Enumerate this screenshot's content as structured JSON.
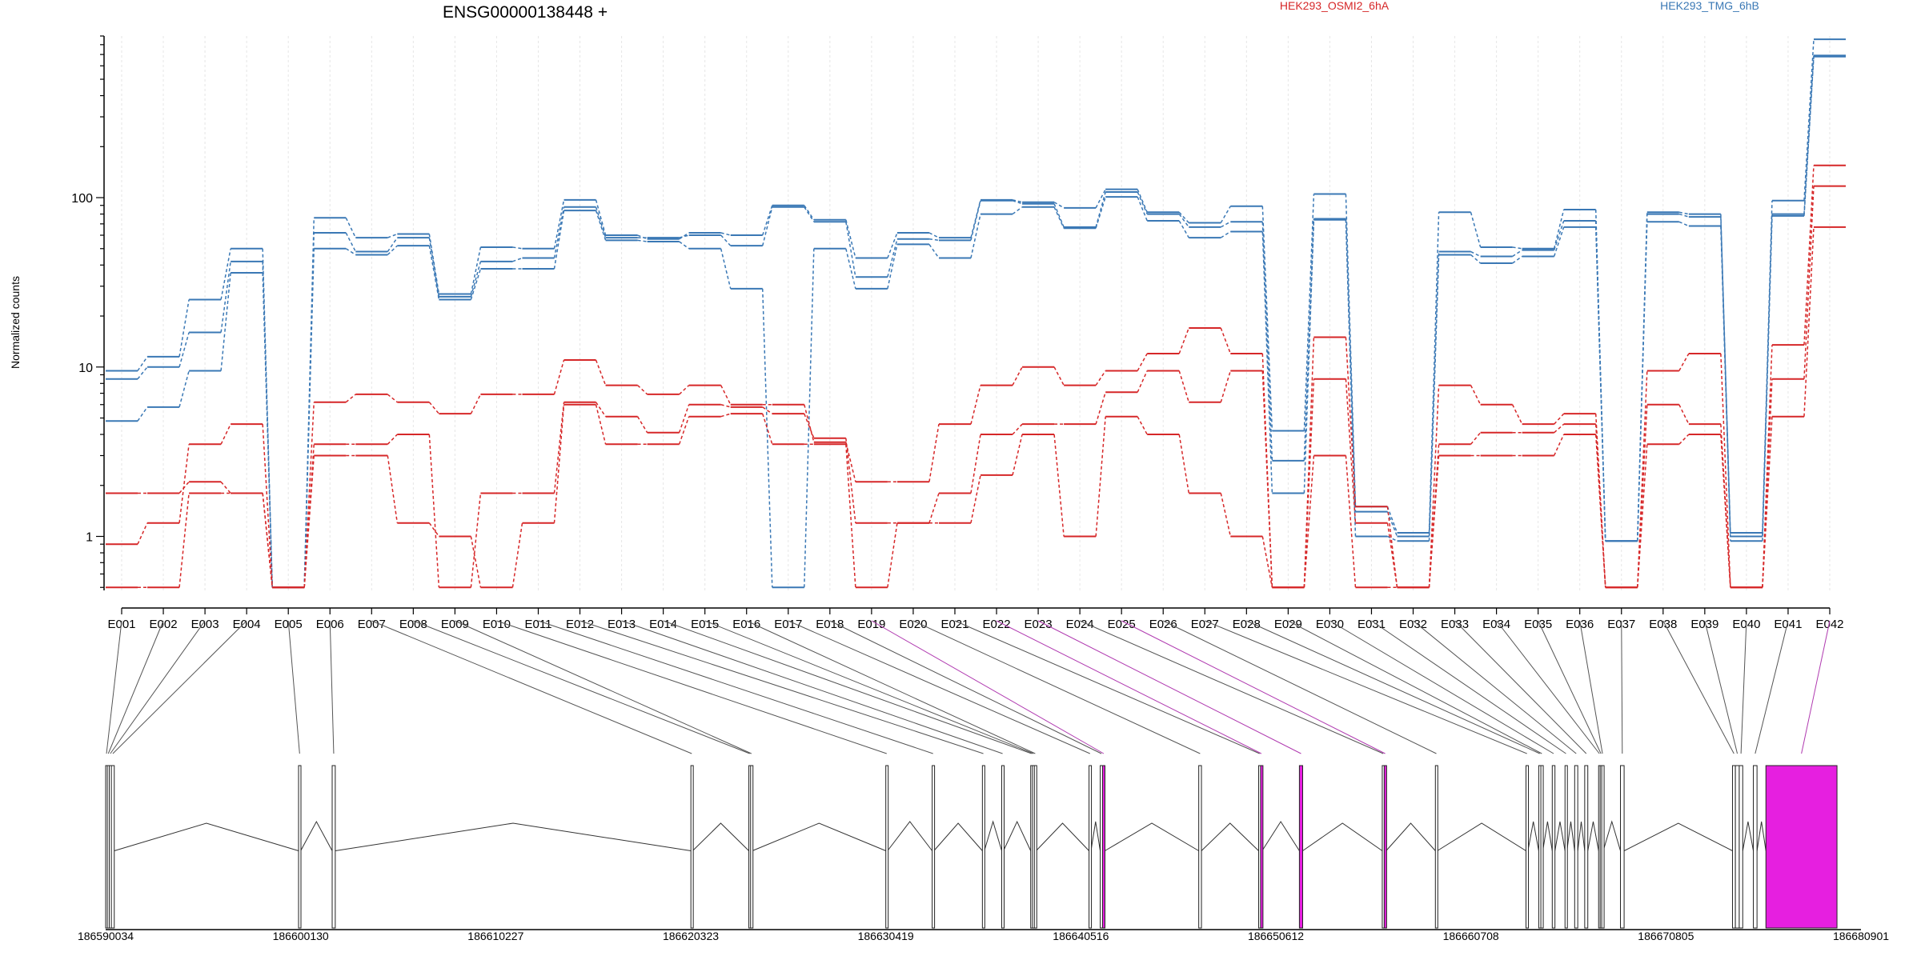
{
  "chart_data": {
    "type": "line",
    "title": "ENSG00000138448 +",
    "ylabel": "Normalized counts",
    "y_scale": "log",
    "ylim": [
      0.48,
      900
    ],
    "y_ticks": [
      1,
      10,
      100
    ],
    "y_tick_labels": [
      "1",
      "10",
      "100"
    ],
    "legend": [
      {
        "name": "HEK293_OSMI2_6hA",
        "color": "#d62728"
      },
      {
        "name": "HEK293_TMG_6hB",
        "color": "#3a78b5"
      }
    ],
    "categories": [
      "E001",
      "E002",
      "E003",
      "E004",
      "E005",
      "E006",
      "E007",
      "E008",
      "E009",
      "E010",
      "E011",
      "E012",
      "E013",
      "E014",
      "E015",
      "E016",
      "E017",
      "E018",
      "E019",
      "E020",
      "E021",
      "E022",
      "E023",
      "E024",
      "E025",
      "E026",
      "E027",
      "E028",
      "E029",
      "E030",
      "E031",
      "E032",
      "E033",
      "E034",
      "E035",
      "E036",
      "E037",
      "E038",
      "E039",
      "E040",
      "E041",
      "E042"
    ],
    "highlighted_categories": [
      "E019",
      "E022",
      "E023",
      "E025",
      "E042"
    ],
    "series": [
      {
        "group": "HEK293_TMG_6hB",
        "values": [
          9.5,
          11.5,
          25,
          50,
          0.5,
          76,
          58,
          61,
          27,
          51,
          50,
          97,
          60,
          57,
          62,
          60,
          90,
          74,
          44,
          62,
          58,
          97,
          94,
          87,
          112,
          82,
          71,
          89,
          4.2,
          105,
          1.5,
          1.05,
          82,
          51,
          50,
          85,
          0.94,
          82,
          80,
          1.05,
          96,
          860
        ]
      },
      {
        "group": "HEK293_TMG_6hB",
        "values": [
          8.5,
          10,
          16,
          42,
          0.5,
          62,
          48,
          58,
          26,
          42,
          44,
          88,
          58,
          58,
          60,
          52,
          88,
          72,
          34,
          57,
          56,
          96,
          92,
          67,
          108,
          80,
          67,
          72,
          2.8,
          75,
          1.4,
          1.0,
          48,
          45,
          49,
          73,
          0.94,
          80,
          77,
          1.0,
          80,
          690
        ]
      },
      {
        "group": "HEK293_TMG_6hB",
        "values": [
          4.8,
          5.8,
          9.5,
          36,
          0.5,
          50,
          46,
          52,
          25,
          38,
          38,
          84,
          56,
          55,
          50,
          29,
          0.5,
          50,
          29,
          53,
          44,
          80,
          88,
          66,
          101,
          73,
          58,
          63,
          1.8,
          74,
          1.0,
          0.94,
          46,
          41,
          45,
          67,
          0.94,
          72,
          68,
          0.94,
          78,
          680
        ]
      },
      {
        "group": "HEK293_OSMI2_6hA",
        "values": [
          1.8,
          1.8,
          2.1,
          1.8,
          0.5,
          6.2,
          6.9,
          6.2,
          5.3,
          6.9,
          6.9,
          11,
          7.8,
          6.9,
          7.8,
          6.0,
          6.0,
          3.6,
          2.1,
          2.1,
          4.6,
          7.8,
          10,
          7.8,
          9.5,
          12,
          17,
          12,
          0.5,
          15,
          1.5,
          0.5,
          7.8,
          6.0,
          4.6,
          5.3,
          0.5,
          9.5,
          12,
          0.5,
          13.5,
          155
        ]
      },
      {
        "group": "HEK293_OSMI2_6hA",
        "values": [
          0.9,
          1.2,
          3.5,
          4.6,
          0.5,
          3.5,
          3.5,
          4.0,
          0.5,
          1.8,
          1.8,
          6.2,
          5.1,
          4.1,
          6.0,
          5.8,
          5.3,
          3.8,
          1.2,
          1.2,
          1.8,
          4.0,
          4.6,
          4.6,
          7.1,
          9.5,
          6.2,
          9.5,
          0.5,
          8.5,
          1.2,
          0.5,
          3.5,
          4.1,
          4.1,
          4.6,
          0.5,
          6.0,
          4.6,
          0.5,
          8.5,
          117
        ]
      },
      {
        "group": "HEK293_OSMI2_6hA",
        "values": [
          0.5,
          0.5,
          1.8,
          1.8,
          0.5,
          3.0,
          3.0,
          1.2,
          1.0,
          0.5,
          1.2,
          6.0,
          3.5,
          3.5,
          5.1,
          5.3,
          3.5,
          3.5,
          0.5,
          1.2,
          1.2,
          2.3,
          4.0,
          1.0,
          5.1,
          4.0,
          1.8,
          1.0,
          0.5,
          3.0,
          0.5,
          0.5,
          3.0,
          3.0,
          3.0,
          4.0,
          0.5,
          3.5,
          4.0,
          0.5,
          5.1,
          67
        ]
      }
    ],
    "gene_model": {
      "coordinate_ticks": [
        186590034,
        186600130,
        186610227,
        186620323,
        186630419,
        186640516,
        186650612,
        186660708,
        186670805,
        186680901
      ],
      "coordinate_tick_labels": [
        "186590034",
        "186600130",
        "186610227",
        "186620323",
        "186630419",
        "186640516",
        "186650612",
        "186660708",
        "186670805",
        "186680901"
      ],
      "exons": [
        {
          "id": "E001",
          "start": 186590034,
          "end": 186590120
        },
        {
          "id": "E002",
          "start": 186590120,
          "end": 186590220
        },
        {
          "id": "E003",
          "start": 186590220,
          "end": 186590330
        },
        {
          "id": "E004",
          "start": 186590330,
          "end": 186590480
        },
        {
          "id": "E005",
          "start": 186600020,
          "end": 186600130
        },
        {
          "id": "E006",
          "start": 186601760,
          "end": 186601920
        },
        {
          "id": "E007",
          "start": 186620330,
          "end": 186620420
        },
        {
          "id": "E008",
          "start": 186623330,
          "end": 186623420
        },
        {
          "id": "E009",
          "start": 186623420,
          "end": 186623510
        },
        {
          "id": "E010",
          "start": 186630420,
          "end": 186630510
        },
        {
          "id": "E011",
          "start": 186632820,
          "end": 186632910
        },
        {
          "id": "E012",
          "start": 186635420,
          "end": 186635520
        },
        {
          "id": "E013",
          "start": 186636420,
          "end": 186636510
        },
        {
          "id": "E014",
          "start": 186637920,
          "end": 186638010
        },
        {
          "id": "E015",
          "start": 186638010,
          "end": 186638110
        },
        {
          "id": "E016",
          "start": 186638110,
          "end": 186638200
        },
        {
          "id": "E017",
          "start": 186640940,
          "end": 186641040
        },
        {
          "id": "E018",
          "start": 186641520,
          "end": 186641640
        },
        {
          "id": "E019",
          "start": 186641640,
          "end": 186641760
        },
        {
          "id": "E020",
          "start": 186646620,
          "end": 186646760
        },
        {
          "id": "E021",
          "start": 186649720,
          "end": 186649820
        },
        {
          "id": "E022",
          "start": 186649820,
          "end": 186649900
        },
        {
          "id": "E023",
          "start": 186651830,
          "end": 186652000
        },
        {
          "id": "E024",
          "start": 186656120,
          "end": 186656220
        },
        {
          "id": "E025",
          "start": 186656220,
          "end": 186656320
        },
        {
          "id": "E026",
          "start": 186658870,
          "end": 186658970
        },
        {
          "id": "E027",
          "start": 186663560,
          "end": 186663660
        },
        {
          "id": "E028",
          "start": 186664220,
          "end": 186664330
        },
        {
          "id": "E029",
          "start": 186664330,
          "end": 186664430
        },
        {
          "id": "E030",
          "start": 186664920,
          "end": 186665060
        },
        {
          "id": "E031",
          "start": 186665580,
          "end": 186665680
        },
        {
          "id": "E032",
          "start": 186666080,
          "end": 186666240
        },
        {
          "id": "E033",
          "start": 186666600,
          "end": 186666760
        },
        {
          "id": "E034",
          "start": 186667320,
          "end": 186667400
        },
        {
          "id": "E035",
          "start": 186667400,
          "end": 186667480
        },
        {
          "id": "E036",
          "start": 186667480,
          "end": 186667560
        },
        {
          "id": "E037",
          "start": 186668450,
          "end": 186668640
        },
        {
          "id": "E038",
          "start": 186674250,
          "end": 186674400
        },
        {
          "id": "E039",
          "start": 186674400,
          "end": 186674600
        },
        {
          "id": "E040",
          "start": 186674600,
          "end": 186674780
        },
        {
          "id": "E041",
          "start": 186675330,
          "end": 186675520
        },
        {
          "id": "E042",
          "start": 186675980,
          "end": 186679660
        }
      ]
    }
  },
  "colors": {
    "osmi_series": "#d62728",
    "tmg_series": "#3a78b5",
    "highlight": "#e61fe0",
    "highlight_line": "#b03ab0",
    "connector": "#555555",
    "axis": "#000000",
    "grid": "#e6e6e6"
  }
}
